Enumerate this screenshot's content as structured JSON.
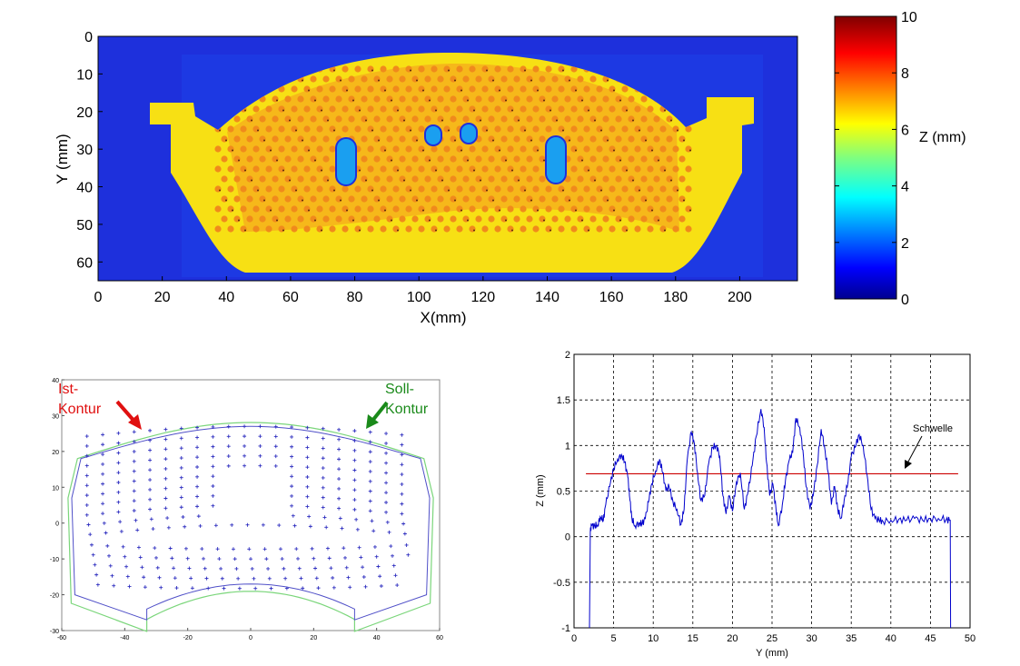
{
  "chart_data": [
    {
      "type": "heatmap",
      "xlabel": "X(mm)",
      "ylabel": "Y (mm)",
      "xticks": [
        0,
        20,
        40,
        60,
        80,
        100,
        120,
        140,
        160,
        180,
        200
      ],
      "yticks": [
        0,
        10,
        20,
        30,
        40,
        50,
        60
      ],
      "xlim": [
        0,
        218
      ],
      "ylim": [
        0,
        65
      ],
      "y_axis_inverted": true,
      "colorbar": {
        "label": "Z (mm)",
        "ticks": [
          0,
          2,
          4,
          6,
          8,
          10
        ],
        "range": [
          0,
          10
        ],
        "colormap": "jet"
      },
      "colors": {
        "background": "#1e30dc",
        "pad": "#f7e014",
        "dots": "#f08a1c",
        "holes": "#1a9ff0"
      }
    },
    {
      "type": "scatter",
      "xticks": [
        -60,
        -40,
        -20,
        0,
        20,
        40,
        60
      ],
      "yticks": [
        -30,
        -20,
        -10,
        0,
        10,
        20,
        30,
        40
      ],
      "xlim": [
        -60,
        60
      ],
      "ylim": [
        -30,
        40
      ],
      "annotations": [
        {
          "text": "Ist-\nKontur",
          "color": "#e01010"
        },
        {
          "text": "Soll-\nKontur",
          "color": "#1a8a1a"
        }
      ],
      "series": [
        {
          "color": "#3030c0",
          "marker": "+"
        },
        {
          "color": "#7bd67b",
          "marker": "line"
        }
      ]
    },
    {
      "type": "line",
      "xlabel": "Y  (mm)",
      "ylabel": "Z (mm)",
      "xlim": [
        0,
        50
      ],
      "ylim": [
        -1,
        2
      ],
      "xticks": [
        0,
        5,
        10,
        15,
        20,
        25,
        30,
        35,
        40,
        45,
        50
      ],
      "yticks": [
        -1,
        -0.5,
        0,
        0.5,
        1,
        1.5,
        2
      ],
      "ytick_labels": [
        "-1",
        "-0.5",
        "0",
        "0.5",
        "1",
        "1.5",
        "2"
      ],
      "grid": true,
      "threshold": {
        "label": "Schwelle",
        "value": 0.69,
        "color": "#cc0000"
      },
      "series": [
        {
          "color": "#0000cc",
          "points": [
            [
              1.95,
              -1
            ],
            [
              2.05,
              0.05
            ],
            [
              2.2,
              0.12
            ],
            [
              2.6,
              0.12
            ],
            [
              3,
              0.13
            ],
            [
              3.3,
              0.22
            ],
            [
              3.7,
              0.18
            ],
            [
              4,
              0.35
            ],
            [
              4.5,
              0.55
            ],
            [
              5,
              0.75
            ],
            [
              5.5,
              0.85
            ],
            [
              6,
              0.9
            ],
            [
              6.4,
              0.82
            ],
            [
              6.8,
              0.65
            ],
            [
              7,
              0.45
            ],
            [
              7.3,
              0.2
            ],
            [
              7.7,
              0.12
            ],
            [
              8.2,
              0.15
            ],
            [
              8.6,
              0.14
            ],
            [
              9,
              0.2
            ],
            [
              9.4,
              0.38
            ],
            [
              9.8,
              0.58
            ],
            [
              10.3,
              0.72
            ],
            [
              10.8,
              0.85
            ],
            [
              11.2,
              0.7
            ],
            [
              11.6,
              0.5
            ],
            [
              12,
              0.55
            ],
            [
              12.5,
              0.38
            ],
            [
              13,
              0.3
            ],
            [
              13.5,
              0.13
            ],
            [
              13.9,
              0.3
            ],
            [
              14.3,
              0.85
            ],
            [
              14.8,
              1.15
            ],
            [
              15.2,
              1.02
            ],
            [
              15.6,
              0.7
            ],
            [
              16,
              0.4
            ],
            [
              16.5,
              0.45
            ],
            [
              17,
              0.8
            ],
            [
              17.5,
              0.98
            ],
            [
              18,
              1.0
            ],
            [
              18.4,
              0.88
            ],
            [
              18.8,
              0.45
            ],
            [
              19.2,
              0.25
            ],
            [
              19.6,
              0.45
            ],
            [
              20,
              0.28
            ],
            [
              20.5,
              0.6
            ],
            [
              21,
              0.7
            ],
            [
              21.5,
              0.3
            ],
            [
              22,
              0.5
            ],
            [
              22.5,
              0.78
            ],
            [
              23,
              1.1
            ],
            [
              23.6,
              1.4
            ],
            [
              24,
              1.2
            ],
            [
              24.3,
              0.82
            ],
            [
              24.7,
              0.45
            ],
            [
              25.1,
              0.58
            ],
            [
              25.5,
              0.3
            ],
            [
              25.8,
              0.12
            ],
            [
              26.3,
              0.35
            ],
            [
              26.7,
              0.62
            ],
            [
              27.2,
              0.85
            ],
            [
              27.6,
              0.92
            ],
            [
              28,
              1.3
            ],
            [
              28.5,
              1.2
            ],
            [
              28.9,
              0.95
            ],
            [
              29.3,
              0.55
            ],
            [
              29.8,
              0.3
            ],
            [
              30.2,
              0.45
            ],
            [
              30.7,
              0.78
            ],
            [
              31.2,
              1.18
            ],
            [
              31.6,
              1.0
            ],
            [
              32.1,
              0.7
            ],
            [
              32.5,
              0.35
            ],
            [
              32.9,
              0.55
            ],
            [
              33.3,
              0.3
            ],
            [
              33.7,
              0.2
            ],
            [
              34.1,
              0.4
            ],
            [
              34.6,
              0.6
            ],
            [
              35,
              0.88
            ],
            [
              35.5,
              0.98
            ],
            [
              36,
              1.12
            ],
            [
              36.5,
              1.0
            ],
            [
              37,
              0.68
            ],
            [
              37.5,
              0.3
            ],
            [
              38,
              0.2
            ],
            [
              38.5,
              0.18
            ],
            [
              39,
              0.17
            ],
            [
              40,
              0.18
            ],
            [
              41,
              0.19
            ],
            [
              42,
              0.18
            ],
            [
              43,
              0.2
            ],
            [
              44,
              0.18
            ],
            [
              45,
              0.2
            ],
            [
              46,
              0.2
            ],
            [
              47,
              0.19
            ],
            [
              47.5,
              0.18
            ],
            [
              47.55,
              -1
            ]
          ]
        }
      ]
    }
  ]
}
